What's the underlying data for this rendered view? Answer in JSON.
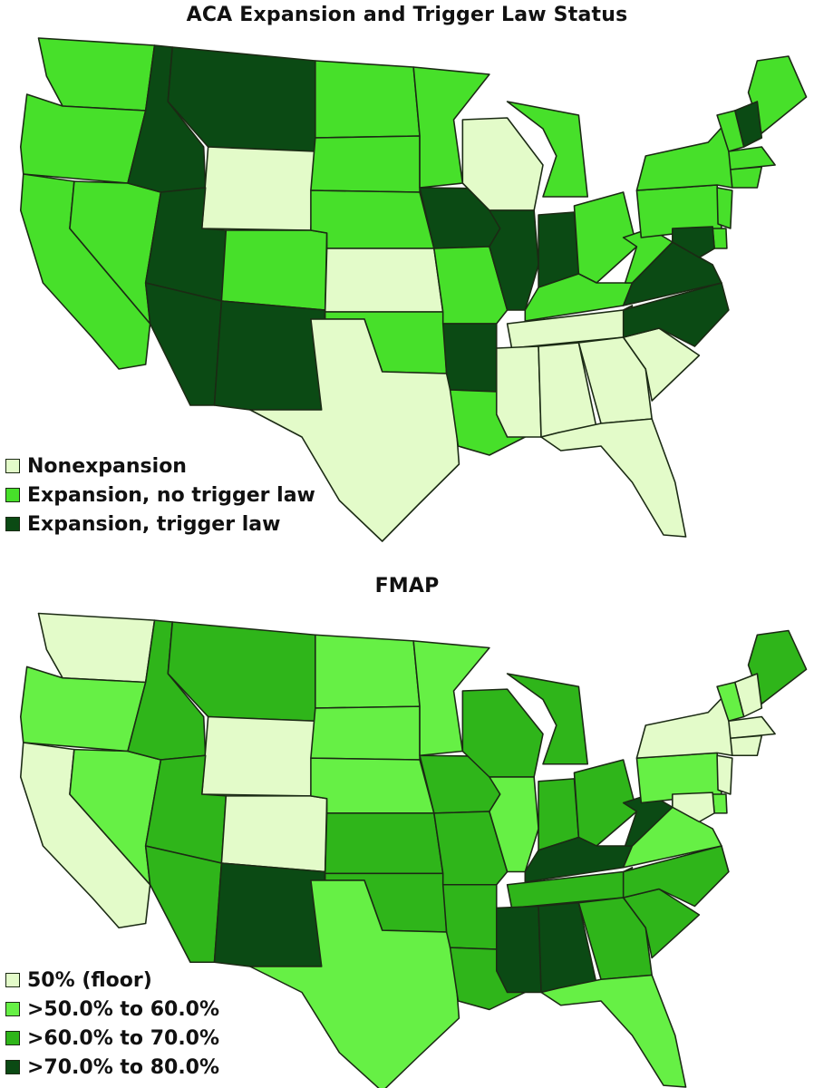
{
  "maps": [
    {
      "title": "ACA Expansion and Trigger Law Status",
      "colors": [
        "#e3fbc9",
        "#47e02a",
        "#0b4a14"
      ],
      "legend": [
        {
          "label": "Nonexpansion",
          "class": 0
        },
        {
          "label": "Expansion, no trigger law",
          "class": 1
        },
        {
          "label": "Expansion, trigger law",
          "class": 2
        }
      ],
      "states": {
        "WA": 1,
        "OR": 1,
        "CA": 1,
        "NV": 1,
        "ID": 2,
        "MT": 2,
        "WY": 0,
        "UT": 2,
        "AZ": 2,
        "CO": 1,
        "NM": 2,
        "ND": 1,
        "SD": 1,
        "NE": 1,
        "KS": 0,
        "OK": 1,
        "TX": 0,
        "MN": 1,
        "IA": 2,
        "MO": 1,
        "AR": 2,
        "LA": 1,
        "WI": 0,
        "IL": 2,
        "MI": 1,
        "IN": 2,
        "OH": 1,
        "KY": 1,
        "TN": 0,
        "MS": 0,
        "AL": 0,
        "GA": 0,
        "FL": 0,
        "SC": 0,
        "NC": 2,
        "VA": 2,
        "WV": 1,
        "PA": 1,
        "NY": 1,
        "ME": 1,
        "NH": 2,
        "VT": 1,
        "MA": 1,
        "NE_SM": 1,
        "NJ": 1,
        "DE": 1,
        "MD": 2
      }
    },
    {
      "title": "FMAP",
      "colors": [
        "#e3fbc9",
        "#66f045",
        "#2fb51a",
        "#0b4a14"
      ],
      "legend": [
        {
          "label": "50% (floor)",
          "class": 0
        },
        {
          "label": ">50.0% to 60.0%",
          "class": 1
        },
        {
          "label": ">60.0% to 70.0%",
          "class": 2
        },
        {
          "label": ">70.0% to 80.0%",
          "class": 3
        }
      ],
      "states": {
        "WA": 0,
        "OR": 1,
        "CA": 0,
        "NV": 1,
        "ID": 2,
        "MT": 2,
        "WY": 0,
        "UT": 2,
        "AZ": 2,
        "CO": 0,
        "NM": 3,
        "ND": 1,
        "SD": 1,
        "NE": 1,
        "KS": 2,
        "OK": 2,
        "TX": 1,
        "MN": 1,
        "IA": 2,
        "MO": 2,
        "AR": 2,
        "LA": 2,
        "WI": 2,
        "IL": 1,
        "MI": 2,
        "IN": 2,
        "OH": 2,
        "KY": 3,
        "TN": 2,
        "MS": 3,
        "AL": 3,
        "GA": 2,
        "FL": 1,
        "SC": 2,
        "NC": 2,
        "VA": 1,
        "WV": 3,
        "PA": 1,
        "NY": 0,
        "ME": 2,
        "NH": 0,
        "VT": 1,
        "MA": 0,
        "NE_SM": 0,
        "NJ": 0,
        "DE": 1,
        "MD": 0
      }
    }
  ]
}
